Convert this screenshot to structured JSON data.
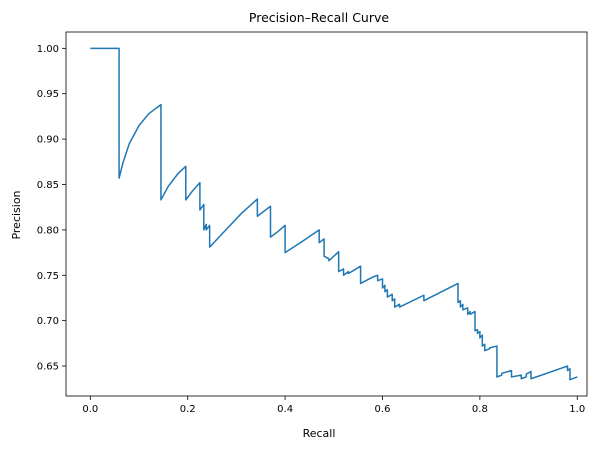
{
  "chart_data": {
    "type": "line",
    "title": "Precision–Recall Curve",
    "xlabel": "Recall",
    "ylabel": "Precision",
    "xlim": [
      -0.05,
      1.02
    ],
    "ylim": [
      0.617,
      1.018
    ],
    "xticks": [
      "0.0",
      "0.2",
      "0.4",
      "0.6",
      "0.8",
      "1.0"
    ],
    "yticks": [
      "0.65",
      "0.70",
      "0.75",
      "0.80",
      "0.85",
      "0.90",
      "0.95",
      "1.00"
    ],
    "grid": false,
    "legend": "none",
    "line_color": "#1f77b4",
    "series": [
      {
        "x": [
          0.0,
          0.059,
          0.059,
          0.067,
          0.08,
          0.1,
          0.12,
          0.145,
          0.145,
          0.16,
          0.18,
          0.196,
          0.196,
          0.21,
          0.225,
          0.225,
          0.233,
          0.233,
          0.238,
          0.238,
          0.245,
          0.245,
          0.28,
          0.31,
          0.343,
          0.343,
          0.36,
          0.37,
          0.37,
          0.385,
          0.4,
          0.4,
          0.44,
          0.47,
          0.47,
          0.48,
          0.48,
          0.49,
          0.49,
          0.51,
          0.51,
          0.52,
          0.52,
          0.53,
          0.53,
          0.555,
          0.555,
          0.58,
          0.59,
          0.59,
          0.6,
          0.6,
          0.605,
          0.605,
          0.61,
          0.61,
          0.62,
          0.62,
          0.625,
          0.625,
          0.635,
          0.635,
          0.685,
          0.685,
          0.755,
          0.755,
          0.76,
          0.76,
          0.765,
          0.765,
          0.775,
          0.775,
          0.78,
          0.78,
          0.79,
          0.79,
          0.795,
          0.795,
          0.8,
          0.8,
          0.805,
          0.805,
          0.81,
          0.81,
          0.82,
          0.82,
          0.835,
          0.835,
          0.845,
          0.845,
          0.865,
          0.865,
          0.885,
          0.885,
          0.895,
          0.895,
          0.905,
          0.905,
          0.98,
          0.98,
          0.985,
          0.985,
          1.0
        ],
        "y": [
          1.0,
          1.0,
          0.857,
          0.874,
          0.895,
          0.915,
          0.928,
          0.938,
          0.833,
          0.848,
          0.862,
          0.87,
          0.833,
          0.843,
          0.852,
          0.822,
          0.828,
          0.8,
          0.806,
          0.8,
          0.805,
          0.781,
          0.801,
          0.818,
          0.834,
          0.815,
          0.822,
          0.826,
          0.792,
          0.798,
          0.805,
          0.775,
          0.789,
          0.8,
          0.786,
          0.79,
          0.771,
          0.768,
          0.766,
          0.776,
          0.754,
          0.757,
          0.75,
          0.754,
          0.752,
          0.76,
          0.741,
          0.748,
          0.75,
          0.744,
          0.746,
          0.736,
          0.739,
          0.732,
          0.734,
          0.726,
          0.729,
          0.722,
          0.724,
          0.715,
          0.718,
          0.715,
          0.728,
          0.722,
          0.741,
          0.72,
          0.722,
          0.715,
          0.718,
          0.712,
          0.714,
          0.707,
          0.71,
          0.707,
          0.71,
          0.689,
          0.69,
          0.686,
          0.688,
          0.681,
          0.684,
          0.672,
          0.674,
          0.667,
          0.669,
          0.67,
          0.672,
          0.638,
          0.64,
          0.642,
          0.645,
          0.638,
          0.64,
          0.636,
          0.638,
          0.641,
          0.644,
          0.636,
          0.65,
          0.645,
          0.647,
          0.635,
          0.638
        ]
      }
    ]
  }
}
